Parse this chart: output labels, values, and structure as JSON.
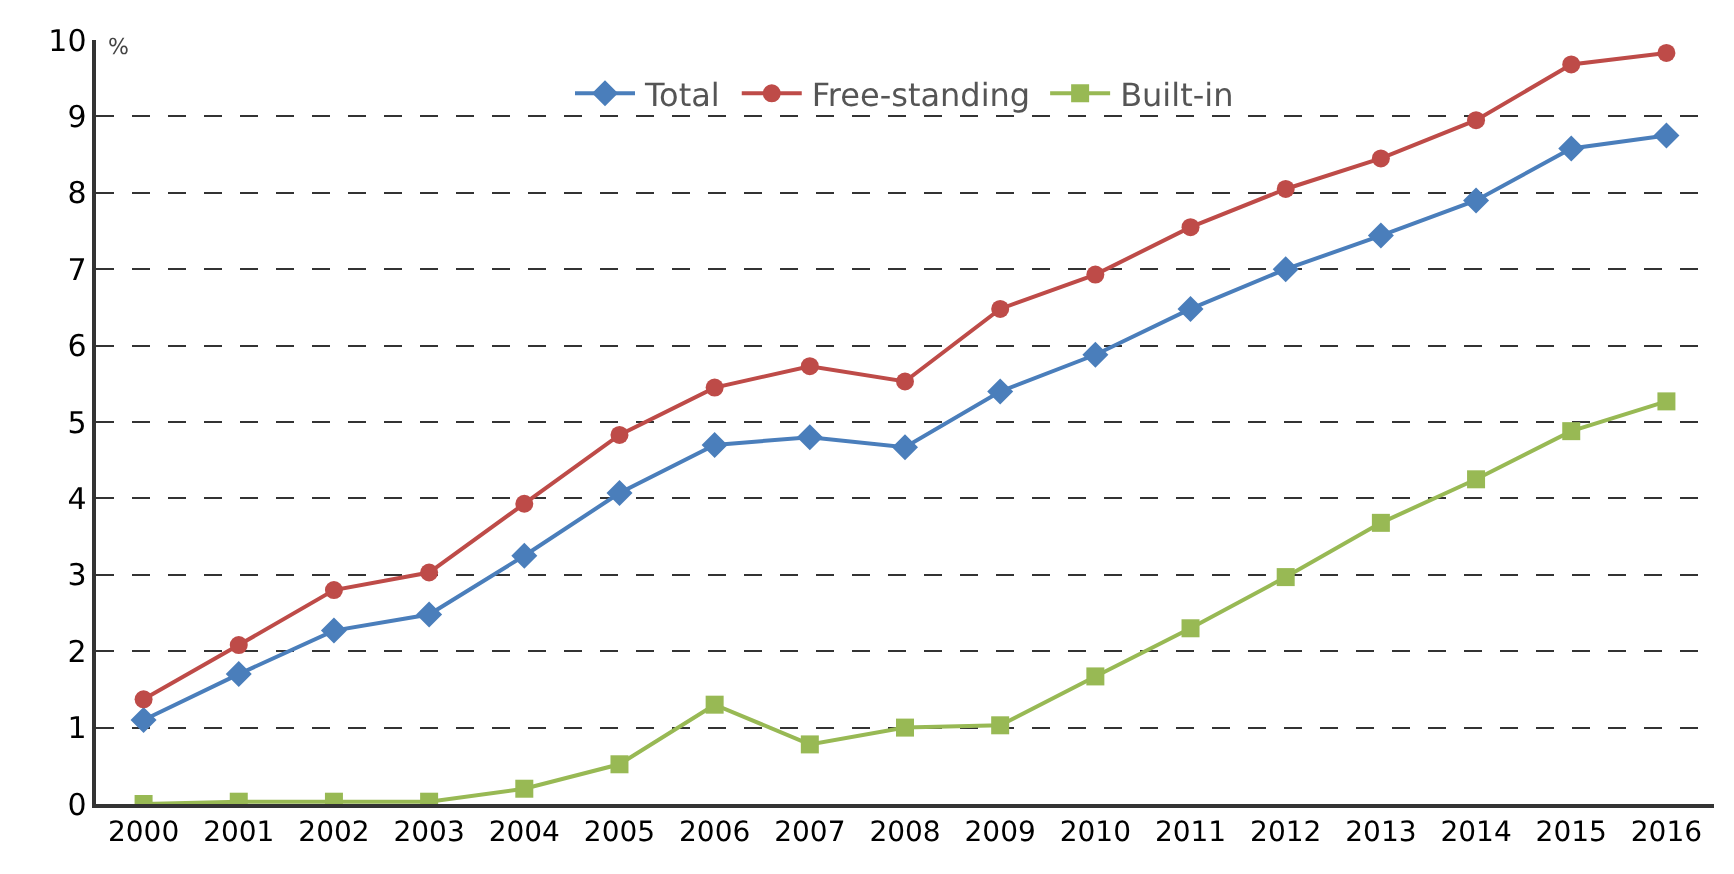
{
  "chart_data": {
    "type": "line",
    "ylabel": "%",
    "categories": [
      "2000",
      "2001",
      "2002",
      "2003",
      "2004",
      "2005",
      "2006",
      "2007",
      "2008",
      "2009",
      "2010",
      "2011",
      "2012",
      "2013",
      "2014",
      "2015",
      "2016"
    ],
    "series": [
      {
        "name": "Total",
        "color": "#4a7ebb",
        "marker": "diamond",
        "values": [
          1.1,
          1.7,
          2.27,
          2.48,
          3.25,
          4.07,
          4.7,
          4.8,
          4.67,
          5.4,
          5.88,
          6.48,
          7.0,
          7.44,
          7.9,
          8.58,
          8.75
        ]
      },
      {
        "name": "Free-standing",
        "color": "#be4b48",
        "marker": "circle",
        "values": [
          1.37,
          2.08,
          2.8,
          3.03,
          3.93,
          4.83,
          5.45,
          5.73,
          5.53,
          6.48,
          6.93,
          7.55,
          8.05,
          8.45,
          8.95,
          9.68,
          9.83
        ]
      },
      {
        "name": "Built-in",
        "color": "#98b954",
        "marker": "square",
        "values": [
          0,
          0.03,
          0.03,
          0.03,
          0.2,
          0.52,
          1.3,
          0.78,
          1.0,
          1.03,
          1.67,
          2.3,
          2.97,
          3.68,
          4.25,
          4.88,
          5.27
        ]
      }
    ],
    "ylim": [
      0,
      10
    ],
    "yticks": [
      0,
      1,
      2,
      3,
      4,
      5,
      6,
      7,
      8,
      9,
      10
    ],
    "grid": "y",
    "legend": "top",
    "line_style": "solid"
  }
}
